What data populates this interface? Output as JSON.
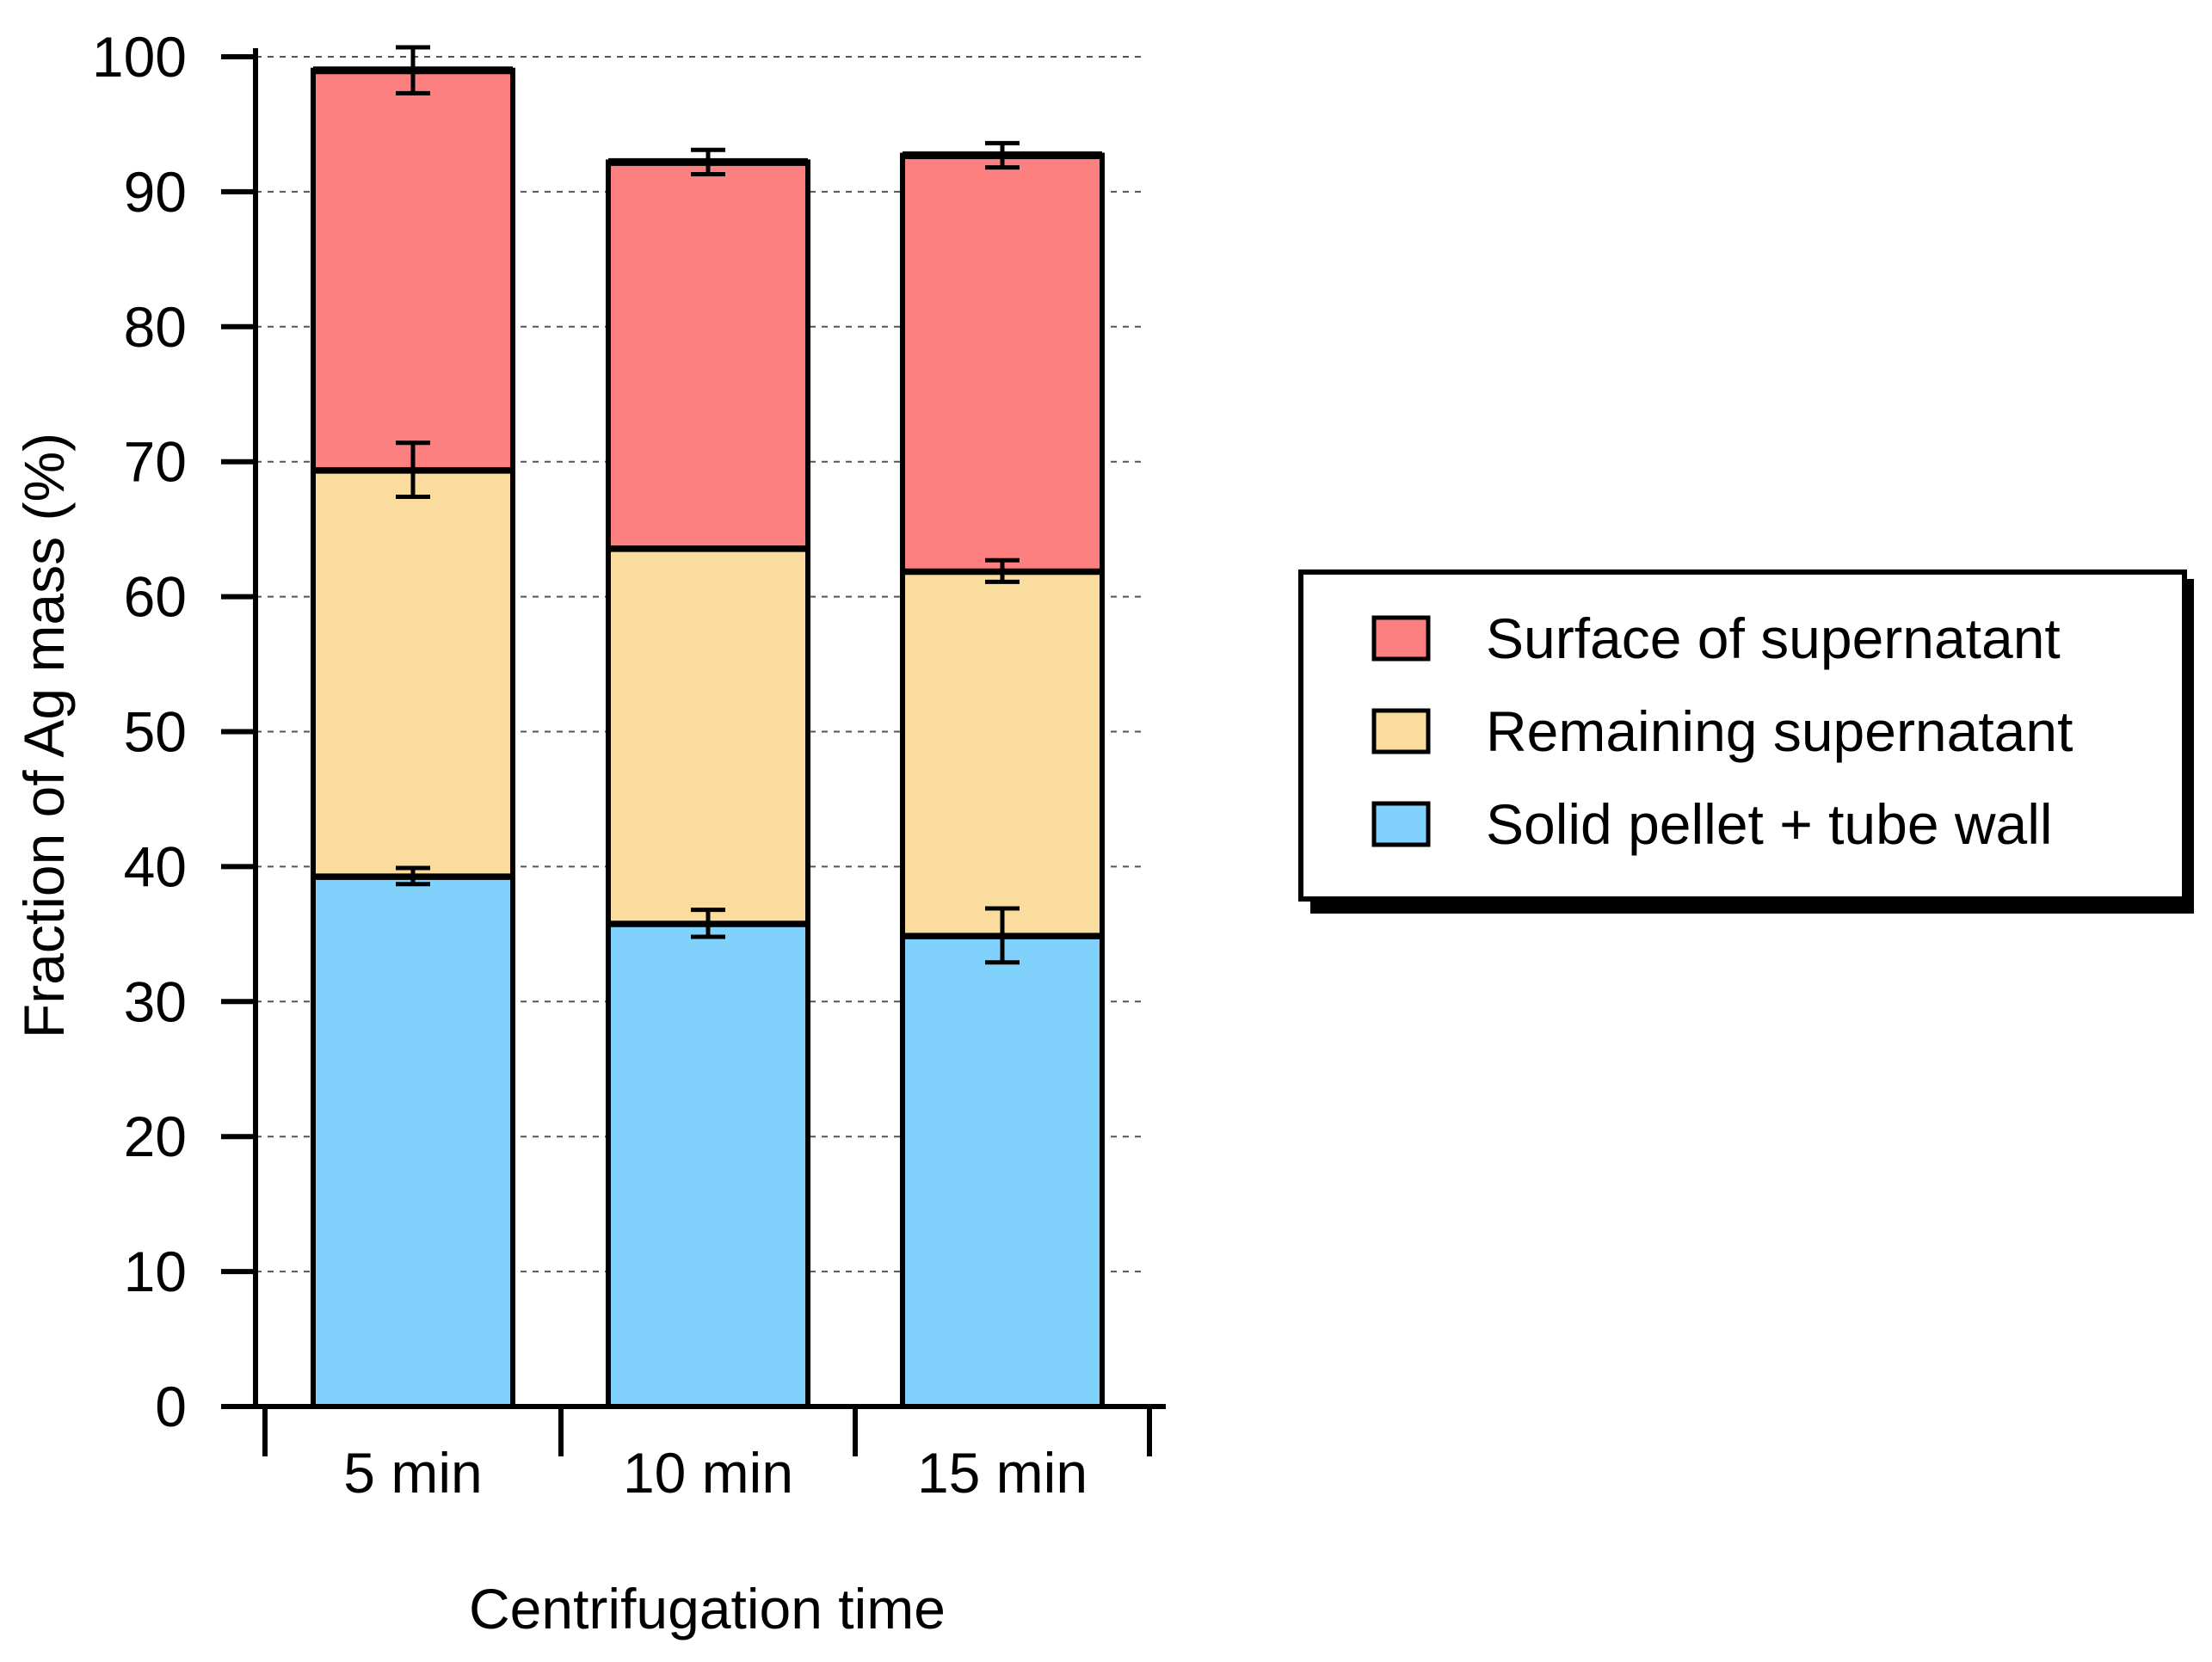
{
  "chart_data": {
    "type": "bar",
    "stacked": true,
    "title": "",
    "xlabel": "Centrifugation time",
    "ylabel": "Fraction of Ag mass (%)",
    "ylim": [
      0,
      100
    ],
    "yticks": [
      0,
      10,
      20,
      30,
      40,
      50,
      60,
      70,
      80,
      90,
      100
    ],
    "grid": true,
    "legend_position": "right",
    "categories": [
      "5 min",
      "10 min",
      "15 min"
    ],
    "series": [
      {
        "name": "Solid pellet + tube wall",
        "color": "#80d2fc",
        "values": [
          39.3,
          35.8,
          34.9
        ],
        "errors": [
          0.6,
          1.0,
          2.0
        ],
        "cumulative_top": [
          39.3,
          35.8,
          34.9
        ]
      },
      {
        "name": "Remaining supernatant",
        "color": "#fadc9e",
        "values": [
          30.1,
          27.8,
          27.0
        ],
        "errors": [
          2.0,
          0.0,
          0.8
        ],
        "cumulative_top": [
          69.4,
          63.6,
          61.9
        ]
      },
      {
        "name": "Surface of supernatant",
        "color": "#fd8080",
        "values": [
          29.6,
          28.6,
          30.8
        ],
        "errors": [
          1.7,
          0.9,
          0.9
        ],
        "cumulative_top": [
          99.0,
          92.2,
          92.7
        ]
      }
    ],
    "legend_order": [
      "Surface of supernatant",
      "Remaining supernatant",
      "Solid pellet + tube wall"
    ]
  }
}
